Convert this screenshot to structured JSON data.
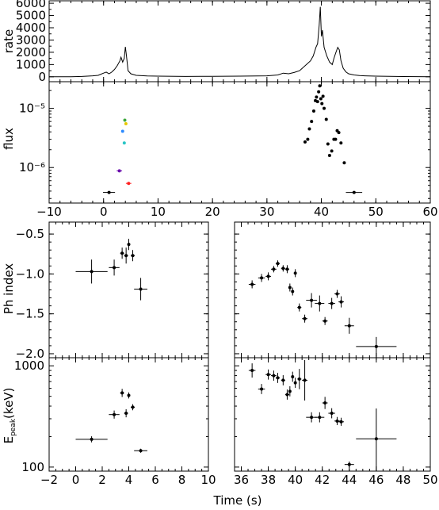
{
  "chart_data": [
    {
      "id": "rate",
      "type": "line",
      "ylabel": "rate",
      "xlim": [
        -10,
        60
      ],
      "ylim": [
        -400,
        6200
      ],
      "yticks": [
        0,
        1000,
        2000,
        3000,
        4000,
        5000,
        6000
      ],
      "ytick_labels": [
        "0",
        "1000",
        "2000",
        "3000",
        "4000",
        "5000",
        "6000"
      ],
      "series": [
        {
          "x": [
            -10,
            -6,
            -4,
            -2,
            -1,
            0,
            0.5,
            1,
            1.5,
            2,
            2.5,
            3,
            3.2,
            3.5,
            3.8,
            4,
            4.2,
            4.5,
            5,
            6,
            8,
            10,
            15,
            20,
            25,
            30,
            32,
            33,
            34,
            35,
            36,
            37,
            38,
            38.5,
            39,
            39.3,
            39.6,
            39.8,
            40,
            40.2,
            40.5,
            41,
            41.5,
            42,
            42.3,
            42.6,
            43,
            43.3,
            43.6,
            44,
            44.5,
            45,
            46,
            47,
            48,
            50,
            55,
            60
          ],
          "y": [
            0,
            0,
            30,
            80,
            120,
            300,
            380,
            250,
            380,
            600,
            900,
            1300,
            1600,
            1200,
            1500,
            2450,
            1700,
            500,
            250,
            120,
            70,
            50,
            30,
            40,
            50,
            80,
            150,
            300,
            250,
            350,
            500,
            900,
            1300,
            1700,
            2400,
            2700,
            4200,
            5700,
            3300,
            3800,
            2400,
            1700,
            1200,
            1000,
            1500,
            1900,
            2400,
            2200,
            1300,
            700,
            400,
            250,
            150,
            100,
            80,
            50,
            20,
            0
          ]
        }
      ]
    },
    {
      "id": "flux",
      "type": "scatter",
      "ylabel": "flux",
      "xlim": [
        -10,
        60
      ],
      "ylim_log10": [
        -6.6,
        -4.55
      ],
      "yscale": "log",
      "yticks_log10": [
        -6,
        -5
      ],
      "ytick_labels": [
        "10⁻⁶",
        "10⁻⁵"
      ],
      "xticks": [
        -10,
        0,
        10,
        20,
        30,
        40,
        50,
        60
      ],
      "xtick_labels": [
        "−10",
        "0",
        "10",
        "20",
        "30",
        "40",
        "50",
        "60"
      ],
      "series": [
        {
          "color": "#000000",
          "points": [
            [
              1,
              3.8e-07,
              1.1
            ],
            [
              46,
              3.8e-07,
              1.5
            ],
            [
              37,
              2.7e-06,
              0
            ],
            [
              37.5,
              3e-06,
              0
            ],
            [
              37.8,
              4.5e-06,
              0
            ],
            [
              38.2,
              6e-06,
              0
            ],
            [
              38.6,
              9e-06,
              0
            ],
            [
              38.9,
              1.35e-05,
              0
            ],
            [
              39.1,
              1.55e-05,
              0
            ],
            [
              39.3,
              1.3e-05,
              0
            ],
            [
              39.5,
              1.9e-05,
              0
            ],
            [
              39.7,
              2.4e-05,
              0
            ],
            [
              39.9,
              1.45e-05,
              0
            ],
            [
              40.1,
              1.2e-05,
              0
            ],
            [
              40.3,
              1.6e-05,
              0
            ],
            [
              40.5,
              1e-05,
              0
            ],
            [
              40.9,
              6.5e-06,
              0
            ],
            [
              41.2,
              2.5e-06,
              0
            ],
            [
              41.5,
              1.6e-06,
              0
            ],
            [
              41.9,
              1.9e-06,
              0
            ],
            [
              42.3,
              3e-06,
              0
            ],
            [
              42.6,
              3e-06,
              0
            ],
            [
              42.9,
              4.2e-06,
              0
            ],
            [
              43.2,
              3.9e-06,
              0
            ],
            [
              43.6,
              2.6e-06,
              0
            ],
            [
              44.2,
              1.2e-06,
              0
            ]
          ]
        },
        {
          "color": "#6a0dad",
          "points": [
            [
              2.9,
              8.8e-07,
              0.5
            ]
          ]
        },
        {
          "color": "#ff2020",
          "points": [
            [
              4.6,
              5.4e-07,
              0.5
            ]
          ]
        },
        {
          "color": "#2e8bff",
          "points": [
            [
              3.5,
              4.1e-06,
              0
            ]
          ]
        },
        {
          "color": "#29c5c5",
          "points": [
            [
              3.8,
              2.6e-06,
              0
            ]
          ]
        },
        {
          "color": "#3da83d",
          "points": [
            [
              3.9,
              6.3e-06,
              0
            ]
          ]
        },
        {
          "color": "#e8c800",
          "points": [
            [
              4.1,
              5.5e-06,
              0
            ]
          ]
        }
      ]
    },
    {
      "id": "phindex-early",
      "type": "scatter",
      "ylabel": "Ph index",
      "xlim": [
        -2,
        10
      ],
      "ylim": [
        -2.05,
        -0.35
      ],
      "yticks": [
        -2.0,
        -1.5,
        -1.0,
        -0.5
      ],
      "ytick_labels": [
        "−2.0",
        "−1.5",
        "−1.0",
        "−0.5"
      ],
      "points": [
        [
          1.2,
          -0.97,
          1.2,
          0.15
        ],
        [
          2.9,
          -0.92,
          0.4,
          0.1
        ],
        [
          3.5,
          -0.74,
          0.15,
          0.07
        ],
        [
          3.8,
          -0.77,
          0.15,
          0.1
        ],
        [
          4.0,
          -0.63,
          0.1,
          0.07
        ],
        [
          4.3,
          -0.77,
          0.15,
          0.07
        ],
        [
          4.9,
          -1.19,
          0.5,
          0.14
        ]
      ]
    },
    {
      "id": "phindex-main",
      "type": "scatter",
      "xlim": [
        35.5,
        50
      ],
      "ylim": [
        -2.05,
        -0.35
      ],
      "points": [
        [
          36.8,
          -1.13,
          0.25,
          0.05
        ],
        [
          37.5,
          -1.05,
          0.25,
          0.05
        ],
        [
          38.0,
          -1.03,
          0.2,
          0.05
        ],
        [
          38.4,
          -0.94,
          0.2,
          0.04
        ],
        [
          38.7,
          -0.87,
          0.15,
          0.04
        ],
        [
          39.1,
          -0.93,
          0.15,
          0.04
        ],
        [
          39.4,
          -0.94,
          0.15,
          0.05
        ],
        [
          39.6,
          -1.17,
          0.1,
          0.05
        ],
        [
          39.8,
          -1.22,
          0.1,
          0.05
        ],
        [
          40.0,
          -0.99,
          0.1,
          0.05
        ],
        [
          40.3,
          -1.42,
          0.15,
          0.05
        ],
        [
          40.7,
          -1.56,
          0.2,
          0.05
        ],
        [
          41.2,
          -1.33,
          0.4,
          0.09
        ],
        [
          41.8,
          -1.37,
          0.35,
          0.1
        ],
        [
          42.2,
          -1.59,
          0.2,
          0.05
        ],
        [
          42.7,
          -1.37,
          0.25,
          0.07
        ],
        [
          43.1,
          -1.25,
          0.2,
          0.05
        ],
        [
          43.4,
          -1.35,
          0.2,
          0.07
        ],
        [
          44.0,
          -1.65,
          0.35,
          0.1
        ],
        [
          46.0,
          -1.91,
          1.5,
          0.12
        ]
      ]
    },
    {
      "id": "epeak-early",
      "type": "scatter",
      "ylabel": "E_peak(keV)",
      "yscale": "log",
      "xlim": [
        -2,
        10
      ],
      "ylim_log10": [
        1.96,
        3.08
      ],
      "yticks_log10": [
        2,
        3
      ],
      "ytick_labels": [
        "100",
        "1000"
      ],
      "xticks": [
        -2,
        0,
        2,
        4,
        6,
        8,
        10
      ],
      "xtick_labels": [
        "−2",
        "0",
        "2",
        "4",
        "6",
        "8",
        "10"
      ],
      "points": [
        [
          1.2,
          188,
          1.2,
          0.03
        ],
        [
          2.9,
          330,
          0.4,
          0.04
        ],
        [
          3.5,
          540,
          0.15,
          0.04
        ],
        [
          3.8,
          340,
          0.15,
          0.04
        ],
        [
          4.0,
          510,
          0.1,
          0.03
        ],
        [
          4.3,
          390,
          0.15,
          0.03
        ],
        [
          4.9,
          145,
          0.5,
          0.02
        ]
      ]
    },
    {
      "id": "epeak-main",
      "type": "scatter",
      "yscale": "log",
      "xlim": [
        35.5,
        50
      ],
      "ylim_log10": [
        1.96,
        3.08
      ],
      "xticks": [
        36,
        38,
        40,
        42,
        44,
        46,
        48,
        50
      ],
      "xtick_labels": [
        "36",
        "38",
        "40",
        "42",
        "44",
        "46",
        "48",
        "50"
      ],
      "points": [
        [
          36.8,
          900,
          0.25,
          0.07
        ],
        [
          37.5,
          590,
          0.25,
          0.05
        ],
        [
          38.0,
          820,
          0.2,
          0.05
        ],
        [
          38.4,
          800,
          0.2,
          0.05
        ],
        [
          38.7,
          760,
          0.15,
          0.05
        ],
        [
          39.1,
          720,
          0.15,
          0.05
        ],
        [
          39.4,
          520,
          0.15,
          0.05
        ],
        [
          39.6,
          560,
          0.1,
          0.05
        ],
        [
          39.8,
          780,
          0.1,
          0.05
        ],
        [
          40.0,
          680,
          0.1,
          0.05
        ],
        [
          40.3,
          740,
          0.15,
          0.1
        ],
        [
          40.7,
          720,
          0.2,
          0.2
        ],
        [
          41.2,
          310,
          0.4,
          0.05
        ],
        [
          41.8,
          310,
          0.35,
          0.05
        ],
        [
          42.2,
          430,
          0.2,
          0.06
        ],
        [
          42.7,
          340,
          0.25,
          0.05
        ],
        [
          43.1,
          285,
          0.2,
          0.04
        ],
        [
          43.4,
          280,
          0.2,
          0.04
        ],
        [
          44.0,
          106,
          0.35,
          0.03
        ],
        [
          46.0,
          190,
          1.5,
          0.3
        ]
      ]
    }
  ],
  "axis_labels": {
    "rate": "rate",
    "flux": "flux",
    "phindex": "Ph index",
    "epeak_main": "E",
    "epeak_sub": "peak",
    "epeak_unit": "(keV)",
    "time": "Time (s)"
  }
}
